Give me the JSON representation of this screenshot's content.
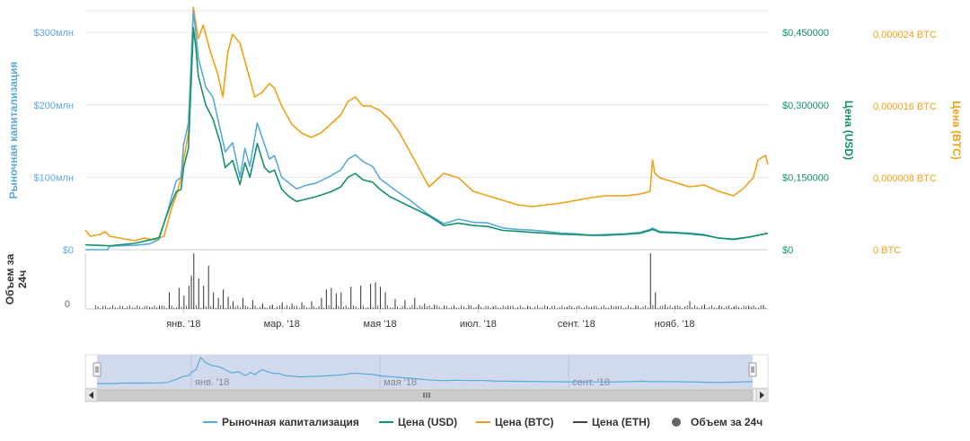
{
  "chart_data": {
    "type": "line",
    "colors": {
      "market_cap": "#5aa9dc",
      "price_usd": "#12916a",
      "price_btc": "#f0a016",
      "price_eth": "#444444",
      "volume": "#333333",
      "grid": "#e6e6e6",
      "navigator_fill": "#ccd6eb",
      "axis_text": "#666666"
    },
    "axes": {
      "left_title": "Рыночная капитализация",
      "volume_title_line1": "Объем за",
      "volume_title_line2": "24ч",
      "usd_title": "Цена (USD)",
      "btc_title": "Цена (BTC)",
      "left_ticks": [
        {
          "value": 0,
          "label": "$0"
        },
        {
          "value": 100,
          "label": "$100млн"
        },
        {
          "value": 200,
          "label": "$200млн"
        },
        {
          "value": 300,
          "label": "$300млн"
        }
      ],
      "usd_ticks": [
        {
          "value": 0,
          "label": "$0"
        },
        {
          "value": 0.15,
          "label": "$0,150000"
        },
        {
          "value": 0.3,
          "label": "$0,300000"
        },
        {
          "value": 0.45,
          "label": "$0,450000"
        }
      ],
      "btc_ticks": [
        {
          "value": 0,
          "label": "0 BTC"
        },
        {
          "value": 8,
          "label": "0,000008 BTC"
        },
        {
          "value": 16,
          "label": "0,000016 BTC"
        },
        {
          "value": 24,
          "label": "0,000024 BTC"
        }
      ],
      "volume_ticks": [
        {
          "value": 0,
          "label": "0"
        }
      ],
      "x_ticks": [
        {
          "month": 2,
          "label": "янв. '18"
        },
        {
          "month": 4,
          "label": "мар. '18"
        },
        {
          "month": 6,
          "label": "мая '18"
        },
        {
          "month": 8,
          "label": "июл. '18"
        },
        {
          "month": 10,
          "label": "сент. '18"
        },
        {
          "month": 12,
          "label": "нояб. '18"
        }
      ],
      "navigator_ticks": [
        {
          "month": 2,
          "label": "янв. '18"
        },
        {
          "month": 6,
          "label": "мая '18"
        },
        {
          "month": 10,
          "label": "сент. '18"
        }
      ],
      "month_range": [
        0,
        13.9
      ],
      "market_cap_range_mln": [
        0,
        330
      ],
      "btc_range_e6": [
        0,
        26.6
      ]
    },
    "series": [
      {
        "key": "market_cap",
        "name": "Рыночная капитализация",
        "unit": "USD млн",
        "axis": "left",
        "points": [
          [
            0,
            0
          ],
          [
            0.45,
            0
          ],
          [
            0.5,
            5
          ],
          [
            1.0,
            6
          ],
          [
            1.3,
            8
          ],
          [
            1.5,
            14
          ],
          [
            1.7,
            58
          ],
          [
            1.85,
            95
          ],
          [
            1.95,
            100
          ],
          [
            2.0,
            145
          ],
          [
            2.1,
            175
          ],
          [
            2.2,
            330
          ],
          [
            2.25,
            300
          ],
          [
            2.3,
            265
          ],
          [
            2.45,
            225
          ],
          [
            2.6,
            210
          ],
          [
            2.75,
            165
          ],
          [
            2.85,
            135
          ],
          [
            3.0,
            148
          ],
          [
            3.15,
            100
          ],
          [
            3.25,
            140
          ],
          [
            3.35,
            115
          ],
          [
            3.5,
            175
          ],
          [
            3.65,
            145
          ],
          [
            3.75,
            125
          ],
          [
            3.85,
            130
          ],
          [
            4.0,
            100
          ],
          [
            4.15,
            92
          ],
          [
            4.3,
            84
          ],
          [
            4.5,
            89
          ],
          [
            4.7,
            92
          ],
          [
            4.85,
            97
          ],
          [
            5.0,
            102
          ],
          [
            5.2,
            110
          ],
          [
            5.35,
            125
          ],
          [
            5.5,
            131
          ],
          [
            5.65,
            122
          ],
          [
            5.85,
            115
          ],
          [
            6.0,
            98
          ],
          [
            6.2,
            88
          ],
          [
            6.4,
            78
          ],
          [
            6.6,
            69
          ],
          [
            6.8,
            58
          ],
          [
            7.0,
            48
          ],
          [
            7.3,
            36
          ],
          [
            7.6,
            42
          ],
          [
            7.9,
            38
          ],
          [
            8.2,
            37
          ],
          [
            8.5,
            30
          ],
          [
            8.8,
            28
          ],
          [
            9.1,
            27
          ],
          [
            9.4,
            25
          ],
          [
            9.7,
            23
          ],
          [
            10.0,
            22
          ],
          [
            10.3,
            20
          ],
          [
            10.6,
            21
          ],
          [
            11.0,
            22
          ],
          [
            11.3,
            24
          ],
          [
            11.5,
            28
          ],
          [
            11.55,
            30
          ],
          [
            11.7,
            25
          ],
          [
            12.0,
            24
          ],
          [
            12.3,
            23
          ],
          [
            12.6,
            21
          ],
          [
            12.9,
            16
          ],
          [
            13.2,
            14
          ],
          [
            13.5,
            17
          ],
          [
            13.7,
            20
          ],
          [
            13.9,
            23
          ]
        ]
      },
      {
        "key": "price_usd",
        "name": "Цена (USD)",
        "unit": "USD",
        "axis": "usd",
        "points": [
          [
            0,
            0.01
          ],
          [
            0.5,
            0.008
          ],
          [
            1.0,
            0.013
          ],
          [
            1.3,
            0.02
          ],
          [
            1.5,
            0.025
          ],
          [
            1.7,
            0.083
          ],
          [
            1.85,
            0.12
          ],
          [
            1.95,
            0.125
          ],
          [
            2.0,
            0.17
          ],
          [
            2.1,
            0.21
          ],
          [
            2.2,
            0.46
          ],
          [
            2.25,
            0.42
          ],
          [
            2.3,
            0.36
          ],
          [
            2.45,
            0.3
          ],
          [
            2.6,
            0.27
          ],
          [
            2.75,
            0.22
          ],
          [
            2.85,
            0.17
          ],
          [
            3.0,
            0.185
          ],
          [
            3.15,
            0.135
          ],
          [
            3.25,
            0.18
          ],
          [
            3.35,
            0.15
          ],
          [
            3.5,
            0.22
          ],
          [
            3.65,
            0.17
          ],
          [
            3.75,
            0.16
          ],
          [
            3.85,
            0.165
          ],
          [
            4.0,
            0.125
          ],
          [
            4.15,
            0.11
          ],
          [
            4.3,
            0.1
          ],
          [
            4.5,
            0.105
          ],
          [
            4.7,
            0.11
          ],
          [
            4.85,
            0.115
          ],
          [
            5.0,
            0.12
          ],
          [
            5.2,
            0.13
          ],
          [
            5.35,
            0.15
          ],
          [
            5.5,
            0.158
          ],
          [
            5.65,
            0.145
          ],
          [
            5.85,
            0.14
          ],
          [
            6.0,
            0.125
          ],
          [
            6.2,
            0.11
          ],
          [
            6.4,
            0.1
          ],
          [
            6.6,
            0.09
          ],
          [
            6.8,
            0.08
          ],
          [
            7.0,
            0.07
          ],
          [
            7.3,
            0.05
          ],
          [
            7.6,
            0.055
          ],
          [
            7.9,
            0.05
          ],
          [
            8.2,
            0.048
          ],
          [
            8.5,
            0.04
          ],
          [
            8.8,
            0.038
          ],
          [
            9.1,
            0.036
          ],
          [
            9.4,
            0.034
          ],
          [
            9.7,
            0.032
          ],
          [
            10.0,
            0.031
          ],
          [
            10.3,
            0.03
          ],
          [
            10.6,
            0.03
          ],
          [
            11.0,
            0.032
          ],
          [
            11.3,
            0.034
          ],
          [
            11.5,
            0.04
          ],
          [
            11.55,
            0.042
          ],
          [
            11.7,
            0.036
          ],
          [
            12.0,
            0.035
          ],
          [
            12.3,
            0.033
          ],
          [
            12.6,
            0.03
          ],
          [
            12.9,
            0.024
          ],
          [
            13.2,
            0.022
          ],
          [
            13.5,
            0.026
          ],
          [
            13.7,
            0.03
          ],
          [
            13.9,
            0.034
          ]
        ]
      },
      {
        "key": "price_btc",
        "name": "Цена (BTC)",
        "unit": "BTC ×1e-6",
        "axis": "btc",
        "points": [
          [
            0,
            2.2
          ],
          [
            0.1,
            1.5
          ],
          [
            0.3,
            1.7
          ],
          [
            0.4,
            2.0
          ],
          [
            0.5,
            1.5
          ],
          [
            0.8,
            1.2
          ],
          [
            1.0,
            1.0
          ],
          [
            1.2,
            1.3
          ],
          [
            1.4,
            1.1
          ],
          [
            1.6,
            1.5
          ],
          [
            1.75,
            4.5
          ],
          [
            1.85,
            6.0
          ],
          [
            1.95,
            8.0
          ],
          [
            2.0,
            10.0
          ],
          [
            2.1,
            13.0
          ],
          [
            2.2,
            27.0
          ],
          [
            2.3,
            23.5
          ],
          [
            2.4,
            25.0
          ],
          [
            2.55,
            22.0
          ],
          [
            2.7,
            19.5
          ],
          [
            2.8,
            17.0
          ],
          [
            2.9,
            22.0
          ],
          [
            3.0,
            24.0
          ],
          [
            3.15,
            23.0
          ],
          [
            3.25,
            21.0
          ],
          [
            3.35,
            19.0
          ],
          [
            3.45,
            17.0
          ],
          [
            3.6,
            17.5
          ],
          [
            3.75,
            18.5
          ],
          [
            3.85,
            18.0
          ],
          [
            4.0,
            16.0
          ],
          [
            4.2,
            14.0
          ],
          [
            4.4,
            13.0
          ],
          [
            4.6,
            12.5
          ],
          [
            4.8,
            13.0
          ],
          [
            5.0,
            14.0
          ],
          [
            5.2,
            15.0
          ],
          [
            5.35,
            16.5
          ],
          [
            5.5,
            17.0
          ],
          [
            5.65,
            16.0
          ],
          [
            5.8,
            16.0
          ],
          [
            6.0,
            15.5
          ],
          [
            6.2,
            14.5
          ],
          [
            6.4,
            13.0
          ],
          [
            6.6,
            11.0
          ],
          [
            6.8,
            9.0
          ],
          [
            7.0,
            7.0
          ],
          [
            7.3,
            8.5
          ],
          [
            7.6,
            8.0
          ],
          [
            7.9,
            6.5
          ],
          [
            8.2,
            6.0
          ],
          [
            8.5,
            5.5
          ],
          [
            8.8,
            5.0
          ],
          [
            9.1,
            4.8
          ],
          [
            9.4,
            5.0
          ],
          [
            9.7,
            5.2
          ],
          [
            10.0,
            5.5
          ],
          [
            10.3,
            5.8
          ],
          [
            10.6,
            6.0
          ],
          [
            11.0,
            6.0
          ],
          [
            11.3,
            6.2
          ],
          [
            11.5,
            6.5
          ],
          [
            11.55,
            10.0
          ],
          [
            11.6,
            8.5
          ],
          [
            11.7,
            8.0
          ],
          [
            12.0,
            7.5
          ],
          [
            12.3,
            7.0
          ],
          [
            12.6,
            7.2
          ],
          [
            12.9,
            6.5
          ],
          [
            13.2,
            6.0
          ],
          [
            13.4,
            6.8
          ],
          [
            13.6,
            8.0
          ],
          [
            13.7,
            10.0
          ],
          [
            13.85,
            10.5
          ],
          [
            13.9,
            9.5
          ]
        ]
      }
    ],
    "volume": {
      "key": "volume",
      "name": "Объем за 24ч",
      "bars": [
        [
          1.3,
          4
        ],
        [
          1.5,
          6
        ],
        [
          1.7,
          30
        ],
        [
          1.9,
          38
        ],
        [
          2.0,
          24
        ],
        [
          2.1,
          42
        ],
        [
          2.15,
          60
        ],
        [
          2.2,
          100
        ],
        [
          2.3,
          55
        ],
        [
          2.4,
          42
        ],
        [
          2.5,
          78
        ],
        [
          2.6,
          30
        ],
        [
          2.7,
          20
        ],
        [
          2.8,
          35
        ],
        [
          2.9,
          22
        ],
        [
          3.0,
          14
        ],
        [
          3.2,
          20
        ],
        [
          3.4,
          16
        ],
        [
          3.6,
          10
        ],
        [
          3.8,
          8
        ],
        [
          4.0,
          12
        ],
        [
          4.2,
          10
        ],
        [
          4.4,
          12
        ],
        [
          4.6,
          14
        ],
        [
          4.8,
          20
        ],
        [
          4.9,
          35
        ],
        [
          5.0,
          38
        ],
        [
          5.1,
          28
        ],
        [
          5.2,
          30
        ],
        [
          5.4,
          40
        ],
        [
          5.6,
          42
        ],
        [
          5.8,
          45
        ],
        [
          5.9,
          48
        ],
        [
          6.0,
          40
        ],
        [
          6.1,
          30
        ],
        [
          6.3,
          18
        ],
        [
          6.5,
          16
        ],
        [
          6.7,
          20
        ],
        [
          6.9,
          10
        ],
        [
          7.1,
          8
        ],
        [
          7.3,
          6
        ],
        [
          7.5,
          5
        ],
        [
          7.8,
          7
        ],
        [
          8.0,
          8
        ],
        [
          8.3,
          5
        ],
        [
          8.6,
          6
        ],
        [
          9.0,
          4
        ],
        [
          9.4,
          5
        ],
        [
          9.8,
          4
        ],
        [
          10.3,
          4
        ],
        [
          10.8,
          5
        ],
        [
          11.2,
          6
        ],
        [
          11.5,
          100
        ],
        [
          11.6,
          30
        ],
        [
          11.8,
          8
        ],
        [
          12.0,
          6
        ],
        [
          12.3,
          14
        ],
        [
          12.6,
          8
        ],
        [
          12.9,
          6
        ],
        [
          13.2,
          5
        ],
        [
          13.5,
          6
        ],
        [
          13.8,
          7
        ]
      ]
    },
    "legend": [
      {
        "key": "market_cap",
        "label": "Рыночная капитализация"
      },
      {
        "key": "price_usd",
        "label": "Цена (USD)"
      },
      {
        "key": "price_btc",
        "label": "Цена (BTC)"
      },
      {
        "key": "price_eth",
        "label": "Цена (ETH)"
      },
      {
        "key": "volume",
        "label": "Объем за 24ч"
      }
    ]
  }
}
